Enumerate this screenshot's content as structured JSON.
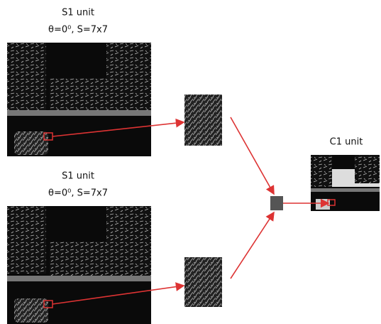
{
  "nodes": [
    {
      "label": "S1 unit",
      "params": "θ=0⁰, S=7x7"
    },
    {
      "label": "S1 unit",
      "params": "θ=0⁰, S=7x7"
    },
    {
      "label": "C1 unit"
    }
  ]
}
